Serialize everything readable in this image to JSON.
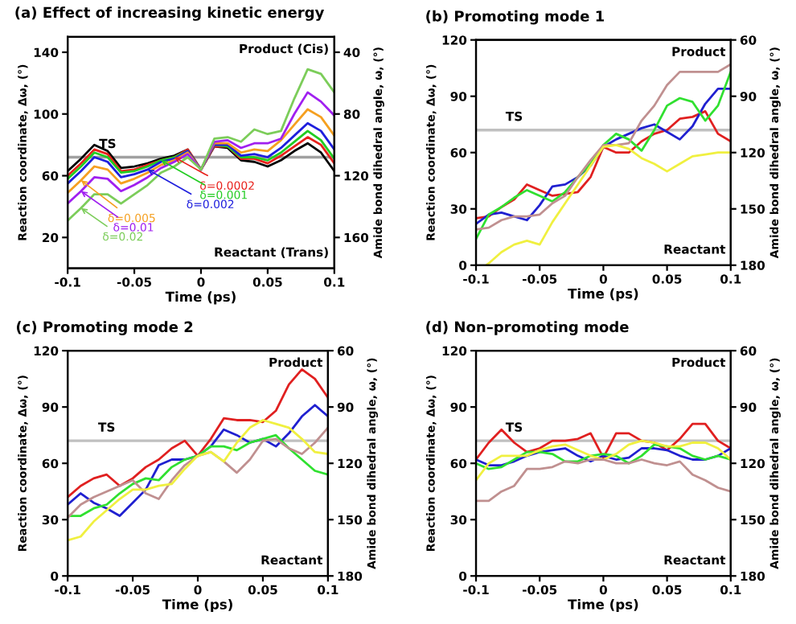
{
  "chart_data": [
    {
      "type": "line",
      "title": "(a) Effect of increasing kinetic energy",
      "xlabel": "Time (ps)",
      "ylabel": "Reaction coordinate, Δω, (°)",
      "y2label": "Amide bond dihedral angle, ω, (°)",
      "x": [
        -0.1,
        -0.09,
        -0.08,
        -0.07,
        -0.06,
        -0.05,
        -0.04,
        -0.03,
        -0.02,
        -0.01,
        0,
        0.01,
        0.02,
        0.03,
        0.04,
        0.05,
        0.06,
        0.07,
        0.08,
        0.09,
        0.1
      ],
      "xlim": [
        -0.1,
        0.1
      ],
      "xticks": [
        -0.1,
        -0.05,
        0,
        0.05,
        0.1
      ],
      "ylim": [
        0,
        150
      ],
      "yticks": [
        20,
        60,
        100,
        140
      ],
      "y2lim": [
        180,
        30
      ],
      "y2ticks": [
        40,
        80,
        120,
        160
      ],
      "series": [
        {
          "color": "#000000",
          "values": [
            63,
            71,
            80,
            76,
            65,
            66,
            68,
            71,
            73,
            77,
            64,
            79,
            78,
            70,
            69,
            66,
            70,
            76,
            81,
            75,
            63
          ]
        },
        {
          "name": "δ=0.0002",
          "color": "#e8221c",
          "values": [
            60,
            68,
            77,
            74,
            63,
            64,
            67,
            70,
            72,
            77,
            64,
            79,
            79,
            71,
            71,
            68,
            73,
            79,
            85,
            80,
            68
          ]
        },
        {
          "name": "δ=0.001",
          "color": "#22cc22",
          "values": [
            58,
            66,
            75,
            72,
            62,
            63,
            66,
            70,
            72,
            76,
            64,
            80,
            79,
            72,
            72,
            70,
            75,
            82,
            89,
            83,
            71
          ]
        },
        {
          "name": "δ=0.002",
          "color": "#1f1fdd",
          "values": [
            55,
            63,
            72,
            69,
            59,
            61,
            64,
            69,
            71,
            76,
            64,
            80,
            80,
            73,
            74,
            72,
            78,
            86,
            94,
            89,
            77
          ]
        },
        {
          "name": "δ=0.005",
          "color": "#f5a020",
          "values": [
            49,
            57,
            66,
            64,
            55,
            58,
            62,
            67,
            70,
            75,
            64,
            81,
            81,
            75,
            77,
            76,
            83,
            93,
            103,
            98,
            86
          ]
        },
        {
          "name": "δ=0.01",
          "color": "#a020f0",
          "values": [
            42,
            50,
            59,
            58,
            50,
            54,
            59,
            65,
            69,
            74,
            64,
            82,
            83,
            78,
            81,
            81,
            84,
            100,
            114,
            108,
            99
          ]
        },
        {
          "name": "δ=0.02",
          "color": "#7ccd5a",
          "values": [
            31,
            39,
            48,
            48,
            42,
            48,
            54,
            62,
            66,
            72,
            64,
            84,
            85,
            82,
            90,
            87,
            89,
            110,
            129,
            126,
            114
          ]
        }
      ],
      "ref_lines": [
        {
          "axis": "y",
          "value": 72,
          "label": "TS",
          "color": "#a0a0a0"
        }
      ],
      "legend": "left",
      "annotations": [
        "Product (Cis)",
        "Reactant (Trans)"
      ]
    },
    {
      "type": "line",
      "title": "(b) Promoting mode 1",
      "xlabel": "Time (ps)",
      "ylabel": "Reaction coordinate, Δω, (°)",
      "y2label": "Amide bond dihedral angle, ω, (°)",
      "x": [
        -0.1,
        -0.09,
        -0.08,
        -0.07,
        -0.06,
        -0.05,
        -0.04,
        -0.03,
        -0.02,
        -0.01,
        0,
        0.01,
        0.02,
        0.03,
        0.04,
        0.05,
        0.06,
        0.07,
        0.08,
        0.09,
        0.1
      ],
      "xlim": [
        -0.1,
        0.1
      ],
      "xticks": [
        -0.1,
        -0.05,
        0,
        0.05,
        0.1
      ],
      "ylim": [
        0,
        120
      ],
      "yticks": [
        0,
        30,
        60,
        90,
        120
      ],
      "y2lim": [
        180,
        60
      ],
      "y2ticks": [
        60,
        90,
        120,
        150,
        180
      ],
      "series": [
        {
          "color": "#e02020",
          "values": [
            25,
            26,
            31,
            35,
            43,
            40,
            37,
            38,
            39,
            47,
            63,
            60,
            60,
            66,
            70,
            72,
            78,
            79,
            82,
            70,
            66
          ]
        },
        {
          "color": "#2020d0",
          "values": [
            22,
            27,
            28,
            26,
            24,
            32,
            42,
            43,
            47,
            53,
            63,
            67,
            70,
            73,
            75,
            71,
            67,
            74,
            86,
            94,
            94
          ]
        },
        {
          "color": "#30e030",
          "values": [
            14,
            27,
            31,
            36,
            40,
            37,
            34,
            39,
            47,
            54,
            64,
            70,
            67,
            61,
            72,
            85,
            89,
            87,
            77,
            85,
            103
          ]
        },
        {
          "color": "#c09090",
          "values": [
            19,
            20,
            24,
            26,
            26,
            27,
            33,
            37,
            47,
            56,
            64,
            64,
            65,
            77,
            85,
            96,
            103,
            103,
            103,
            103,
            107
          ]
        },
        {
          "color": "#f0f040",
          "x": [
            -0.092,
            -0.09,
            -0.08,
            -0.07,
            -0.06,
            -0.05,
            -0.04,
            -0.03,
            -0.02,
            -0.01,
            0,
            0.01,
            0.02,
            0.03,
            0.04,
            0.05,
            0.06,
            0.07,
            0.08,
            0.09,
            0.1
          ],
          "values": [
            0,
            1,
            7,
            11,
            13,
            11,
            23,
            33,
            43,
            53,
            63,
            64,
            62,
            57,
            54,
            50,
            54,
            58,
            59,
            60,
            60
          ]
        }
      ],
      "ref_lines": [
        {
          "axis": "y",
          "value": 72,
          "label": "TS",
          "color": "#c0c0c0"
        }
      ],
      "annotations": [
        "Product",
        "Reactant"
      ]
    },
    {
      "type": "line",
      "title": "(c) Promoting mode 2",
      "xlabel": "Time (ps)",
      "ylabel": "Reaction coordinate, Δω, (°)",
      "y2label": "Amide bond dihedral angle, ω, (°)",
      "x": [
        -0.1,
        -0.09,
        -0.08,
        -0.07,
        -0.06,
        -0.05,
        -0.04,
        -0.03,
        -0.02,
        -0.01,
        0,
        0.01,
        0.02,
        0.03,
        0.04,
        0.05,
        0.06,
        0.07,
        0.08,
        0.09,
        0.1
      ],
      "xlim": [
        -0.1,
        0.1
      ],
      "xticks": [
        -0.1,
        -0.05,
        0,
        0.05,
        0.1
      ],
      "ylim": [
        0,
        120
      ],
      "yticks": [
        0,
        30,
        60,
        90,
        120
      ],
      "y2lim": [
        180,
        60
      ],
      "y2ticks": [
        60,
        90,
        120,
        150,
        180
      ],
      "series": [
        {
          "color": "#e02020",
          "values": [
            42,
            48,
            52,
            54,
            48,
            52,
            58,
            62,
            68,
            72,
            64,
            73,
            84,
            83,
            83,
            82,
            88,
            102,
            110,
            105,
            95
          ]
        },
        {
          "color": "#2020d0",
          "values": [
            38,
            44,
            39,
            36,
            32,
            39,
            46,
            59,
            62,
            62,
            64,
            69,
            78,
            75,
            71,
            73,
            69,
            76,
            85,
            91,
            85
          ]
        },
        {
          "color": "#30e030",
          "values": [
            32,
            32,
            36,
            38,
            44,
            49,
            52,
            51,
            58,
            62,
            64,
            69,
            69,
            67,
            71,
            73,
            75,
            68,
            62,
            56,
            54
          ]
        },
        {
          "color": "#c09090",
          "values": [
            31,
            38,
            42,
            45,
            48,
            51,
            44,
            41,
            51,
            59,
            64,
            66,
            61,
            55,
            62,
            72,
            73,
            68,
            65,
            71,
            79
          ]
        },
        {
          "color": "#f0f040",
          "values": [
            19,
            21,
            29,
            35,
            41,
            46,
            46,
            48,
            49,
            57,
            64,
            66,
            61,
            71,
            79,
            83,
            81,
            79,
            73,
            66,
            65
          ]
        }
      ],
      "ref_lines": [
        {
          "axis": "y",
          "value": 72,
          "label": "TS",
          "color": "#c0c0c0"
        }
      ],
      "annotations": [
        "Product",
        "Reactant"
      ]
    },
    {
      "type": "line",
      "title": "(d) Non–promoting mode",
      "xlabel": "Time (ps)",
      "ylabel": "Reaction coordinate, Δω, (°)",
      "y2label": "Amide bond dihedral angle, ω, (°)",
      "x": [
        -0.1,
        -0.09,
        -0.08,
        -0.07,
        -0.06,
        -0.05,
        -0.04,
        -0.03,
        -0.02,
        -0.01,
        0,
        0.01,
        0.02,
        0.03,
        0.04,
        0.05,
        0.06,
        0.07,
        0.08,
        0.09,
        0.1
      ],
      "xlim": [
        -0.1,
        0.1
      ],
      "xticks": [
        -0.1,
        -0.05,
        0,
        0.05,
        0.1
      ],
      "ylim": [
        0,
        120
      ],
      "yticks": [
        0,
        30,
        60,
        90,
        120
      ],
      "y2lim": [
        180,
        60
      ],
      "y2ticks": [
        60,
        90,
        120,
        150,
        180
      ],
      "series": [
        {
          "color": "#e02020",
          "values": [
            62,
            71,
            78,
            71,
            66,
            68,
            72,
            72,
            73,
            76,
            63,
            76,
            76,
            72,
            71,
            67,
            73,
            81,
            81,
            72,
            68
          ]
        },
        {
          "color": "#2020d0",
          "values": [
            62,
            59,
            59,
            61,
            64,
            66,
            67,
            68,
            64,
            61,
            64,
            62,
            63,
            68,
            68,
            67,
            64,
            62,
            62,
            64,
            68
          ]
        },
        {
          "color": "#30e030",
          "values": [
            60,
            57,
            58,
            62,
            66,
            66,
            65,
            61,
            61,
            64,
            65,
            64,
            60,
            64,
            70,
            69,
            68,
            64,
            62,
            64,
            62
          ]
        },
        {
          "color": "#f0f040",
          "values": [
            51,
            60,
            64,
            64,
            64,
            67,
            69,
            70,
            67,
            64,
            62,
            65,
            70,
            72,
            71,
            69,
            69,
            71,
            71,
            68,
            62
          ]
        },
        {
          "color": "#c09090",
          "values": [
            40,
            40,
            45,
            48,
            57,
            57,
            58,
            61,
            60,
            62,
            62,
            60,
            60,
            62,
            60,
            59,
            61,
            54,
            51,
            47,
            45
          ]
        }
      ],
      "ref_lines": [
        {
          "axis": "y",
          "value": 72,
          "label": "TS",
          "color": "#c0c0c0"
        }
      ],
      "annotations": [
        "Product",
        "Reactant"
      ]
    }
  ]
}
